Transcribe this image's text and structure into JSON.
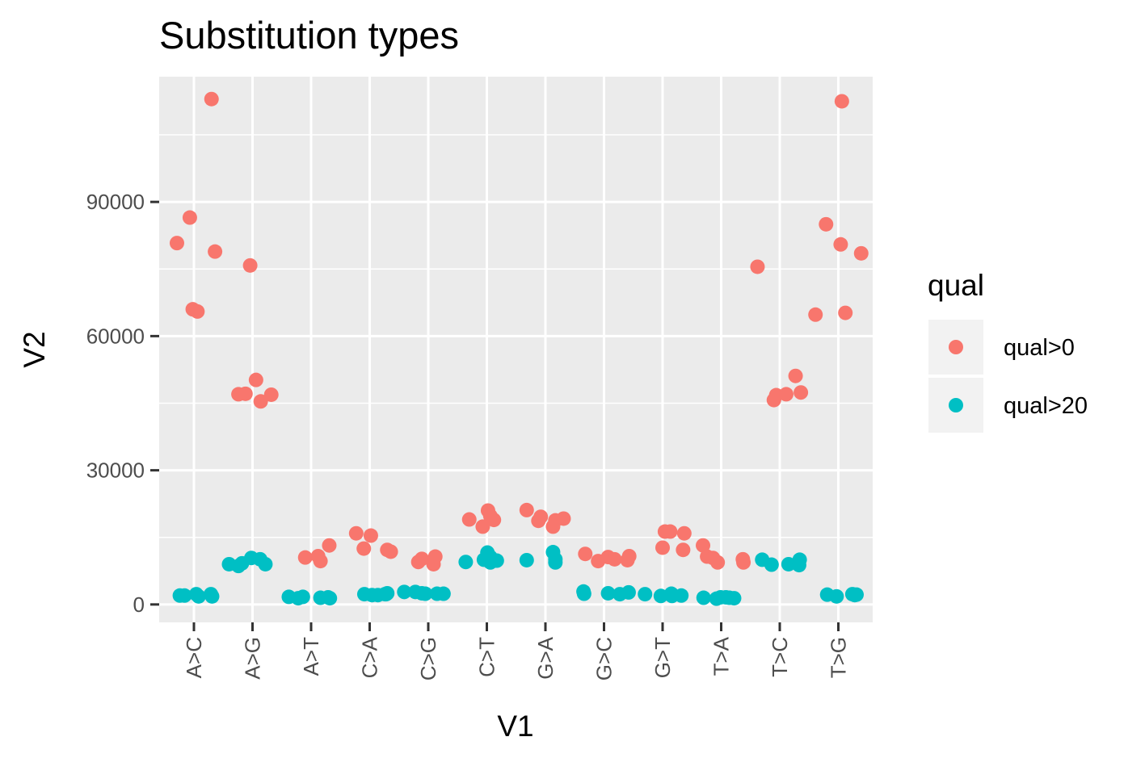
{
  "chart_data": {
    "type": "scatter",
    "title": "Substitution types",
    "xlabel": "V1",
    "ylabel": "V2",
    "categories": [
      "A>C",
      "A>G",
      "A>T",
      "C>A",
      "C>G",
      "C>T",
      "G>A",
      "G>C",
      "G>T",
      "T>A",
      "T>C",
      "T>G"
    ],
    "ylim": [
      -4000,
      118000
    ],
    "y_ticks": [
      0,
      30000,
      60000,
      90000
    ],
    "y_tick_labels": [
      "0",
      "30000",
      "60000",
      "90000"
    ],
    "grid": true,
    "legend": {
      "title": "qual",
      "position": "right",
      "entries": [
        {
          "label": "qual>0",
          "color": "#F8766D"
        },
        {
          "label": "qual>20",
          "color": "#00BFC4"
        }
      ]
    },
    "series": [
      {
        "name": "qual>0",
        "color": "#F8766D",
        "points": [
          {
            "x": "A>C",
            "j": -0.29,
            "y": 80800
          },
          {
            "x": "A>C",
            "j": -0.07,
            "y": 86500
          },
          {
            "x": "A>C",
            "j": -0.02,
            "y": 66000
          },
          {
            "x": "A>C",
            "j": 0.06,
            "y": 65500
          },
          {
            "x": "A>C",
            "j": 0.3,
            "y": 113000
          },
          {
            "x": "A>C",
            "j": 0.36,
            "y": 78900
          },
          {
            "x": "A>G",
            "j": -0.24,
            "y": 47000
          },
          {
            "x": "A>G",
            "j": -0.12,
            "y": 47100
          },
          {
            "x": "A>G",
            "j": -0.04,
            "y": 75800
          },
          {
            "x": "A>G",
            "j": 0.06,
            "y": 50200
          },
          {
            "x": "A>G",
            "j": 0.14,
            "y": 45400
          },
          {
            "x": "A>G",
            "j": 0.32,
            "y": 46900
          },
          {
            "x": "A>T",
            "j": -0.1,
            "y": 10500
          },
          {
            "x": "A>T",
            "j": 0.12,
            "y": 10800
          },
          {
            "x": "A>T",
            "j": 0.16,
            "y": 9700
          },
          {
            "x": "A>T",
            "j": 0.31,
            "y": 13200
          },
          {
            "x": "C>A",
            "j": -0.23,
            "y": 15900
          },
          {
            "x": "C>A",
            "j": -0.1,
            "y": 12500
          },
          {
            "x": "C>A",
            "j": 0.02,
            "y": 15400
          },
          {
            "x": "C>A",
            "j": 0.3,
            "y": 12200
          },
          {
            "x": "C>A",
            "j": 0.36,
            "y": 11800
          },
          {
            "x": "C>G",
            "j": -0.17,
            "y": 9500
          },
          {
            "x": "C>G",
            "j": -0.11,
            "y": 10200
          },
          {
            "x": "C>G",
            "j": 0.09,
            "y": 9000
          },
          {
            "x": "C>G",
            "j": 0.12,
            "y": 10700
          },
          {
            "x": "C>T",
            "j": -0.3,
            "y": 19000
          },
          {
            "x": "C>T",
            "j": -0.07,
            "y": 17400
          },
          {
            "x": "C>T",
            "j": 0.02,
            "y": 21000
          },
          {
            "x": "C>T",
            "j": 0.06,
            "y": 19800
          },
          {
            "x": "C>T",
            "j": 0.12,
            "y": 18900
          },
          {
            "x": "G>A",
            "j": -0.32,
            "y": 21100
          },
          {
            "x": "G>A",
            "j": -0.12,
            "y": 18700
          },
          {
            "x": "G>A",
            "j": -0.08,
            "y": 19600
          },
          {
            "x": "G>A",
            "j": 0.13,
            "y": 17400
          },
          {
            "x": "G>A",
            "j": 0.17,
            "y": 18800
          },
          {
            "x": "G>A",
            "j": 0.31,
            "y": 19200
          },
          {
            "x": "G>C",
            "j": -0.32,
            "y": 11300
          },
          {
            "x": "G>C",
            "j": -0.1,
            "y": 9700
          },
          {
            "x": "G>C",
            "j": 0.07,
            "y": 10600
          },
          {
            "x": "G>C",
            "j": 0.18,
            "y": 10100
          },
          {
            "x": "G>C",
            "j": 0.4,
            "y": 9900
          },
          {
            "x": "G>C",
            "j": 0.43,
            "y": 10800
          },
          {
            "x": "G>T",
            "j": 0.0,
            "y": 12700
          },
          {
            "x": "G>T",
            "j": 0.04,
            "y": 16300
          },
          {
            "x": "G>T",
            "j": 0.13,
            "y": 16300
          },
          {
            "x": "G>T",
            "j": 0.35,
            "y": 12200
          },
          {
            "x": "G>T",
            "j": 0.37,
            "y": 15900
          },
          {
            "x": "T>A",
            "j": -0.31,
            "y": 13200
          },
          {
            "x": "T>A",
            "j": -0.24,
            "y": 10700
          },
          {
            "x": "T>A",
            "j": -0.14,
            "y": 10400
          },
          {
            "x": "T>A",
            "j": -0.06,
            "y": 9400
          },
          {
            "x": "T>A",
            "j": 0.37,
            "y": 10100
          },
          {
            "x": "T>A",
            "j": 0.38,
            "y": 9400
          },
          {
            "x": "T>C",
            "j": -0.38,
            "y": 75500
          },
          {
            "x": "T>C",
            "j": -0.1,
            "y": 45700
          },
          {
            "x": "T>C",
            "j": -0.06,
            "y": 46800
          },
          {
            "x": "T>C",
            "j": 0.11,
            "y": 47000
          },
          {
            "x": "T>C",
            "j": 0.27,
            "y": 51100
          },
          {
            "x": "T>C",
            "j": 0.36,
            "y": 47400
          },
          {
            "x": "T>G",
            "j": -0.39,
            "y": 64800
          },
          {
            "x": "T>G",
            "j": -0.21,
            "y": 85000
          },
          {
            "x": "T>G",
            "j": 0.04,
            "y": 80500
          },
          {
            "x": "T>G",
            "j": 0.06,
            "y": 112500
          },
          {
            "x": "T>G",
            "j": 0.12,
            "y": 65200
          },
          {
            "x": "T>G",
            "j": 0.39,
            "y": 78500
          }
        ]
      },
      {
        "name": "qual>20",
        "color": "#00BFC4",
        "points": [
          {
            "x": "A>C",
            "j": -0.24,
            "y": 2000
          },
          {
            "x": "A>C",
            "j": -0.16,
            "y": 2000
          },
          {
            "x": "A>C",
            "j": 0.04,
            "y": 2300
          },
          {
            "x": "A>C",
            "j": 0.08,
            "y": 1800
          },
          {
            "x": "A>C",
            "j": 0.29,
            "y": 2300
          },
          {
            "x": "A>C",
            "j": 0.31,
            "y": 1800
          },
          {
            "x": "A>G",
            "j": -0.4,
            "y": 9000
          },
          {
            "x": "A>G",
            "j": -0.24,
            "y": 8600
          },
          {
            "x": "A>G",
            "j": -0.18,
            "y": 9200
          },
          {
            "x": "A>G",
            "j": -0.02,
            "y": 10400
          },
          {
            "x": "A>G",
            "j": 0.13,
            "y": 10100
          },
          {
            "x": "A>G",
            "j": 0.22,
            "y": 9000
          },
          {
            "x": "A>T",
            "j": -0.38,
            "y": 1700
          },
          {
            "x": "A>T",
            "j": -0.22,
            "y": 1400
          },
          {
            "x": "A>T",
            "j": -0.14,
            "y": 1700
          },
          {
            "x": "A>T",
            "j": 0.16,
            "y": 1500
          },
          {
            "x": "A>T",
            "j": 0.29,
            "y": 1600
          },
          {
            "x": "A>T",
            "j": 0.32,
            "y": 1400
          },
          {
            "x": "C>A",
            "j": -0.09,
            "y": 2300
          },
          {
            "x": "C>A",
            "j": 0.04,
            "y": 2100
          },
          {
            "x": "C>A",
            "j": 0.14,
            "y": 2100
          },
          {
            "x": "C>A",
            "j": 0.26,
            "y": 2300
          },
          {
            "x": "C>A",
            "j": 0.28,
            "y": 2300
          },
          {
            "x": "C>A",
            "j": 0.3,
            "y": 2500
          },
          {
            "x": "C>G",
            "j": -0.41,
            "y": 2800
          },
          {
            "x": "C>G",
            "j": -0.22,
            "y": 2800
          },
          {
            "x": "C>G",
            "j": -0.11,
            "y": 2500
          },
          {
            "x": "C>G",
            "j": -0.05,
            "y": 2400
          },
          {
            "x": "C>G",
            "j": 0.15,
            "y": 2400
          },
          {
            "x": "C>G",
            "j": 0.26,
            "y": 2400
          },
          {
            "x": "C>T",
            "j": -0.36,
            "y": 9500
          },
          {
            "x": "C>T",
            "j": -0.05,
            "y": 10000
          },
          {
            "x": "C>T",
            "j": 0.01,
            "y": 11600
          },
          {
            "x": "C>T",
            "j": 0.06,
            "y": 9400
          },
          {
            "x": "C>T",
            "j": 0.06,
            "y": 10600
          },
          {
            "x": "C>T",
            "j": 0.17,
            "y": 9800
          },
          {
            "x": "G>A",
            "j": -0.32,
            "y": 9900
          },
          {
            "x": "G>A",
            "j": 0.13,
            "y": 11700
          },
          {
            "x": "G>A",
            "j": 0.17,
            "y": 10100
          },
          {
            "x": "G>A",
            "j": 0.17,
            "y": 9400
          },
          {
            "x": "G>C",
            "j": -0.35,
            "y": 2900
          },
          {
            "x": "G>C",
            "j": -0.34,
            "y": 2400
          },
          {
            "x": "G>C",
            "j": 0.07,
            "y": 2500
          },
          {
            "x": "G>C",
            "j": 0.27,
            "y": 2300
          },
          {
            "x": "G>C",
            "j": 0.42,
            "y": 2700
          },
          {
            "x": "G>C",
            "j": 0.7,
            "y": 2300
          },
          {
            "x": "G>T",
            "j": -0.03,
            "y": 1900
          },
          {
            "x": "G>T",
            "j": 0.15,
            "y": 2400
          },
          {
            "x": "G>T",
            "j": 0.16,
            "y": 1900
          },
          {
            "x": "G>T",
            "j": 0.32,
            "y": 2000
          },
          {
            "x": "T>A",
            "j": -0.3,
            "y": 1500
          },
          {
            "x": "T>A",
            "j": -0.08,
            "y": 1300
          },
          {
            "x": "T>A",
            "j": -0.01,
            "y": 1600
          },
          {
            "x": "T>A",
            "j": 0.08,
            "y": 1600
          },
          {
            "x": "T>A",
            "j": 0.14,
            "y": 1500
          },
          {
            "x": "T>A",
            "j": 0.22,
            "y": 1400
          },
          {
            "x": "T>C",
            "j": -0.3,
            "y": 10000
          },
          {
            "x": "T>C",
            "j": -0.14,
            "y": 8900
          },
          {
            "x": "T>C",
            "j": 0.15,
            "y": 9000
          },
          {
            "x": "T>C",
            "j": 0.33,
            "y": 8800
          },
          {
            "x": "T>C",
            "j": 0.34,
            "y": 10000
          },
          {
            "x": "T>G",
            "j": -0.19,
            "y": 2200
          },
          {
            "x": "T>G",
            "j": -0.03,
            "y": 1800
          },
          {
            "x": "T>G",
            "j": 0.24,
            "y": 2300
          },
          {
            "x": "T>G",
            "j": 0.28,
            "y": 2100
          },
          {
            "x": "T>G",
            "j": 0.31,
            "y": 2200
          }
        ]
      }
    ]
  }
}
